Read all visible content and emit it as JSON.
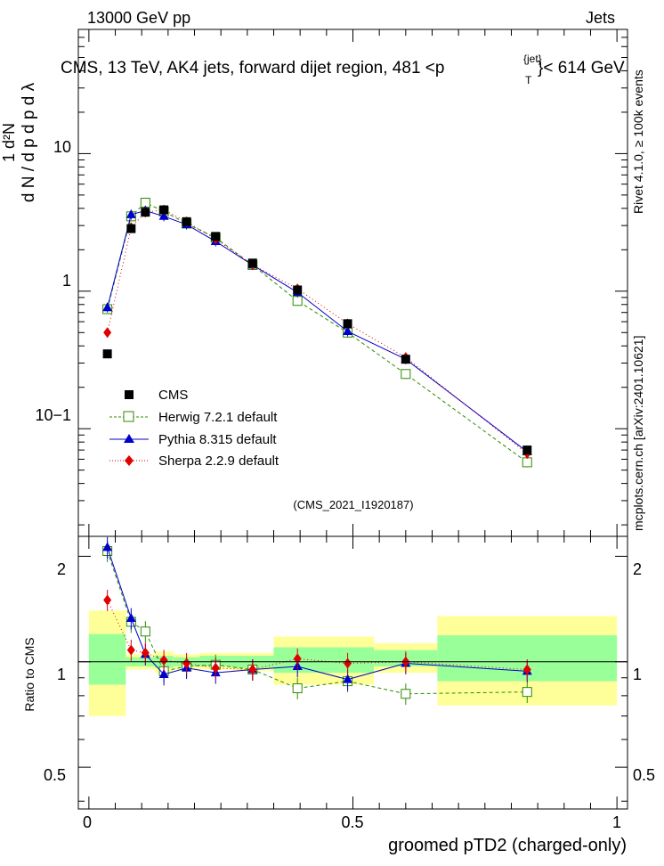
{
  "header": {
    "left": "13000 GeV pp",
    "right": "Jets"
  },
  "side_labels": {
    "rivet": "Rivet 4.1.0, ≥ 100k events",
    "mcplots": "mcplots.cern.ch [arXiv:2401.10621]"
  },
  "watermark": "(CMS_2021_I1920187)",
  "ratio_ylabel": "Ratio to CMS",
  "colors": {
    "cms": "#000000",
    "herwig": "#2e8b00",
    "pythia": "#0000cc",
    "sherpa": "#e00000",
    "band_inner": "#99ff99",
    "band_outer": "#ffff99"
  },
  "chart_data": [
    {
      "type": "line",
      "panel": "main",
      "title": "CMS, 13 TeV, AK4 jets, forward dijet region, 481 <p",
      "title_sup": "{jet}",
      "title_sub": "T",
      "title_end": "}< 614 GeV",
      "ylabel": "1/dN/dpT dN2/dpT dlambda",
      "yscale": "log",
      "ylim": [
        0.0165,
        80
      ],
      "xlim": [
        -0.02,
        1.02
      ],
      "y_ticks": [
        "10",
        "1",
        "10−1"
      ],
      "x": [
        0.035,
        0.08,
        0.107,
        0.142,
        0.185,
        0.24,
        0.31,
        0.395,
        0.49,
        0.6,
        0.83
      ],
      "series": [
        {
          "name": "CMS",
          "marker": "filled-square",
          "values": [
            0.35,
            2.85,
            3.75,
            3.9,
            3.2,
            2.5,
            1.6,
            1.02,
            0.58,
            0.32,
            0.07
          ]
        },
        {
          "name": "Herwig 7.2.1 default",
          "marker": "open-square",
          "values": [
            0.74,
            3.5,
            4.4,
            3.8,
            3.1,
            2.45,
            1.55,
            0.85,
            0.5,
            0.25,
            0.057
          ]
        },
        {
          "name": "Pythia 8.315 default",
          "marker": "filled-triangle",
          "values": [
            0.76,
            3.6,
            3.85,
            3.5,
            3.05,
            2.3,
            1.55,
            0.98,
            0.51,
            0.32,
            0.068
          ]
        },
        {
          "name": "Sherpa 2.2.9 default",
          "marker": "filled-diamond",
          "values": [
            0.5,
            2.9,
            3.75,
            3.9,
            3.2,
            2.4,
            1.55,
            1.04,
            0.58,
            0.33,
            0.066
          ]
        }
      ]
    },
    {
      "type": "line",
      "panel": "ratio",
      "ylabel": "Ratio to CMS",
      "xlabel": "groomed pTD2 (charged-only)",
      "ylim": [
        0.38,
        2.28
      ],
      "xlim": [
        -0.02,
        1.02
      ],
      "y_ticks": [
        "2",
        "1",
        "0.5"
      ],
      "x_ticks": [
        "0",
        "0.5",
        "1"
      ],
      "x": [
        0.035,
        0.08,
        0.107,
        0.142,
        0.185,
        0.24,
        0.31,
        0.395,
        0.49,
        0.6,
        0.83
      ],
      "bands": [
        {
          "x0": 0.0,
          "x1": 0.07,
          "inner": [
            0.86,
            1.2
          ],
          "outer": [
            0.7,
            1.4
          ]
        },
        {
          "x0": 0.07,
          "x1": 0.125,
          "inner": [
            0.97,
            1.03
          ],
          "outer": [
            0.95,
            1.05
          ]
        },
        {
          "x0": 0.125,
          "x1": 0.16,
          "inner": [
            0.96,
            1.04
          ],
          "outer": [
            0.93,
            1.07
          ]
        },
        {
          "x0": 0.16,
          "x1": 0.21,
          "inner": [
            0.97,
            1.03
          ],
          "outer": [
            0.95,
            1.05
          ]
        },
        {
          "x0": 0.21,
          "x1": 0.27,
          "inner": [
            0.97,
            1.04
          ],
          "outer": [
            0.95,
            1.06
          ]
        },
        {
          "x0": 0.27,
          "x1": 0.35,
          "inner": [
            0.96,
            1.04
          ],
          "outer": [
            0.94,
            1.06
          ]
        },
        {
          "x0": 0.35,
          "x1": 0.54,
          "inner": [
            0.93,
            1.1
          ],
          "outer": [
            0.86,
            1.18
          ]
        },
        {
          "x0": 0.54,
          "x1": 0.66,
          "inner": [
            0.97,
            1.08
          ],
          "outer": [
            0.93,
            1.13
          ]
        },
        {
          "x0": 0.66,
          "x1": 1.0,
          "inner": [
            0.88,
            1.19
          ],
          "outer": [
            0.75,
            1.35
          ]
        }
      ],
      "series": [
        {
          "name": "Herwig 7.2.1 default",
          "values": [
            2.07,
            1.3,
            1.22,
            0.94,
            0.97,
            0.98,
            0.95,
            0.84,
            0.88,
            0.81,
            0.82
          ]
        },
        {
          "name": "Pythia 8.315 default",
          "values": [
            2.12,
            1.33,
            1.05,
            0.92,
            0.96,
            0.93,
            0.95,
            0.97,
            0.89,
            0.99,
            0.94
          ]
        },
        {
          "name": "Sherpa 2.2.9 default",
          "values": [
            1.5,
            1.08,
            1.06,
            1.01,
            0.99,
            0.96,
            0.95,
            1.02,
            0.99,
            1.0,
            0.95
          ]
        }
      ]
    }
  ]
}
